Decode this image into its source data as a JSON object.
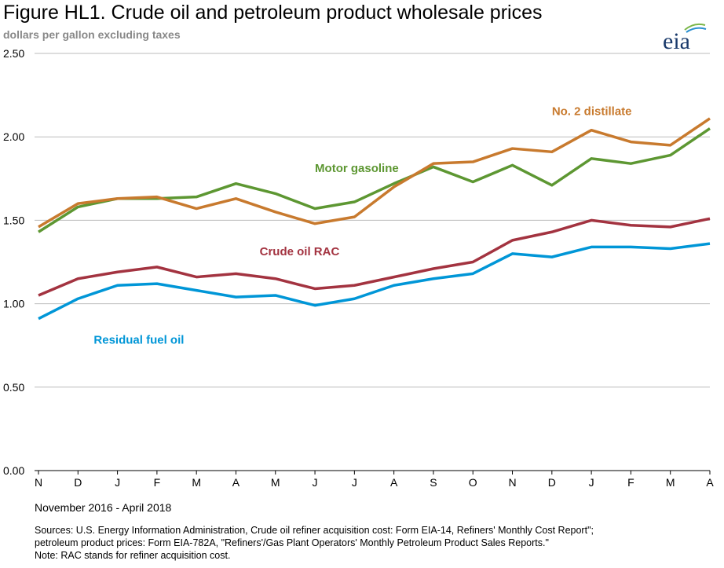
{
  "title": "Figure HL1. Crude oil and petroleum product wholesale prices",
  "subtitle": "dollars per gallon excluding taxes",
  "logo_text": "eia",
  "date_range": "November 2016 - April 2018",
  "notes": [
    "Sources:  U.S. Energy Information Administration, Crude oil refiner acquisition cost:  Form EIA-14, Refiners' Monthly Cost Report\";",
    "petroleum product prices:  Form EIA-782A, \"Refiners'/Gas Plant Operators' Monthly Petroleum Product Sales Reports.\"",
    "Note:  RAC stands for refiner acquisition cost."
  ],
  "chart_data": {
    "type": "line",
    "title": "Figure HL1. Crude oil and petroleum product wholesale prices",
    "ylabel": "dollars per gallon excluding taxes",
    "xlabel": "November 2016 - April 2018",
    "ylim": [
      0,
      2.5
    ],
    "yticks": [
      "0.00",
      "0.50",
      "1.00",
      "1.50",
      "2.00",
      "2.50"
    ],
    "grid": true,
    "categories": [
      "N",
      "D",
      "J",
      "F",
      "M",
      "A",
      "M",
      "J",
      "J",
      "A",
      "S",
      "O",
      "N",
      "D",
      "J",
      "F",
      "M",
      "A"
    ],
    "series": [
      {
        "name": "Motor gasoline",
        "color": "#5d9732",
        "label_pos": [
          7,
          1.79
        ],
        "values": [
          1.43,
          1.58,
          1.63,
          1.63,
          1.64,
          1.72,
          1.66,
          1.57,
          1.61,
          1.72,
          1.82,
          1.73,
          1.83,
          1.71,
          1.87,
          1.84,
          1.89,
          2.05
        ]
      },
      {
        "name": "No. 2 distillate",
        "color": "#c87a2e",
        "label_pos": [
          13,
          2.13
        ],
        "values": [
          1.46,
          1.6,
          1.63,
          1.64,
          1.57,
          1.63,
          1.55,
          1.48,
          1.52,
          1.7,
          1.84,
          1.85,
          1.93,
          1.91,
          2.04,
          1.97,
          1.95,
          2.11
        ]
      },
      {
        "name": "Crude oil RAC",
        "color": "#a33340",
        "label_pos": [
          5.6,
          1.29
        ],
        "values": [
          1.05,
          1.15,
          1.19,
          1.22,
          1.16,
          1.18,
          1.15,
          1.09,
          1.11,
          1.16,
          1.21,
          1.25,
          1.38,
          1.43,
          1.5,
          1.47,
          1.46,
          1.51
        ]
      },
      {
        "name": "Residual fuel oil",
        "color": "#0096d7",
        "label_pos": [
          1.4,
          0.76
        ],
        "values": [
          0.91,
          1.03,
          1.11,
          1.12,
          1.08,
          1.04,
          1.05,
          0.99,
          1.03,
          1.11,
          1.15,
          1.18,
          1.3,
          1.28,
          1.34,
          1.34,
          1.33,
          1.36
        ]
      }
    ]
  }
}
